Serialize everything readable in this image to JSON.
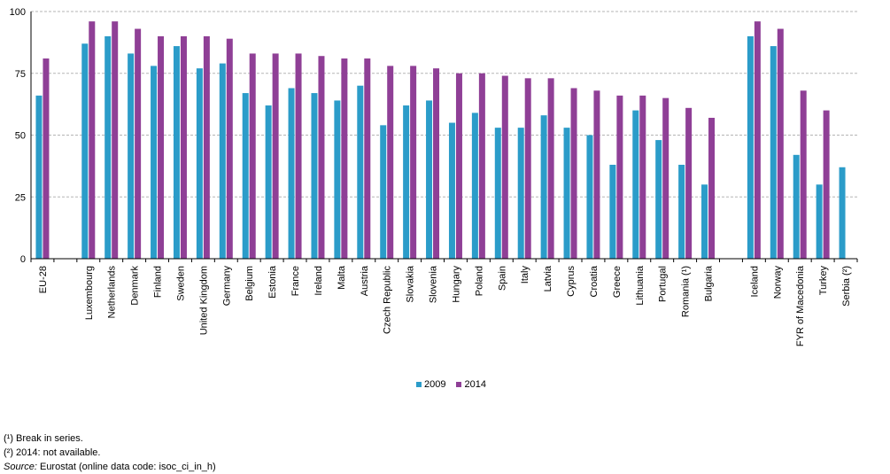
{
  "chart_data": {
    "type": "bar",
    "ylim": [
      0,
      100
    ],
    "yticks": [
      0,
      25,
      50,
      75,
      100
    ],
    "grid": true,
    "legend_position": "bottom-center",
    "categories": [
      "EU-28",
      "",
      "Luxembourg",
      "Netherlands",
      "Denmark",
      "Finland",
      "Sweden",
      "United Kingdom",
      "Germany",
      "Belgium",
      "Estonia",
      "France",
      "Ireland",
      "Malta",
      "Austria",
      "Czech Republic",
      "Slovakia",
      "Slovenia",
      "Hungary",
      "Poland",
      "Spain",
      "Italy",
      "Latvia",
      "Cyprus",
      "Croatia",
      "Greece",
      "Lithuania",
      "Portugal",
      "Romania (¹)",
      "Bulgaria",
      "",
      "Iceland",
      "Norway",
      "FYR of Macedonia",
      "Turkey",
      "Serbia (²)"
    ],
    "series": [
      {
        "name": "2009",
        "color": "#2b9cc9",
        "values": [
          66,
          null,
          87,
          90,
          83,
          78,
          86,
          77,
          79,
          67,
          62,
          69,
          67,
          64,
          70,
          54,
          62,
          64,
          55,
          59,
          53,
          53,
          58,
          53,
          50,
          38,
          60,
          48,
          38,
          30,
          null,
          90,
          86,
          42,
          30,
          37
        ]
      },
      {
        "name": "2014",
        "color": "#8f3f96",
        "values": [
          81,
          null,
          96,
          96,
          93,
          90,
          90,
          90,
          89,
          83,
          83,
          83,
          82,
          81,
          81,
          78,
          78,
          77,
          75,
          75,
          74,
          73,
          73,
          69,
          68,
          66,
          66,
          65,
          61,
          57,
          null,
          96,
          93,
          68,
          60,
          null
        ]
      }
    ]
  },
  "notes": {
    "note1": "(¹) Break in series.",
    "note2": "(²) 2014: not available.",
    "source_label": "Source:",
    "source_text": " Eurostat (online data code: isoc_ci_in_h)"
  }
}
